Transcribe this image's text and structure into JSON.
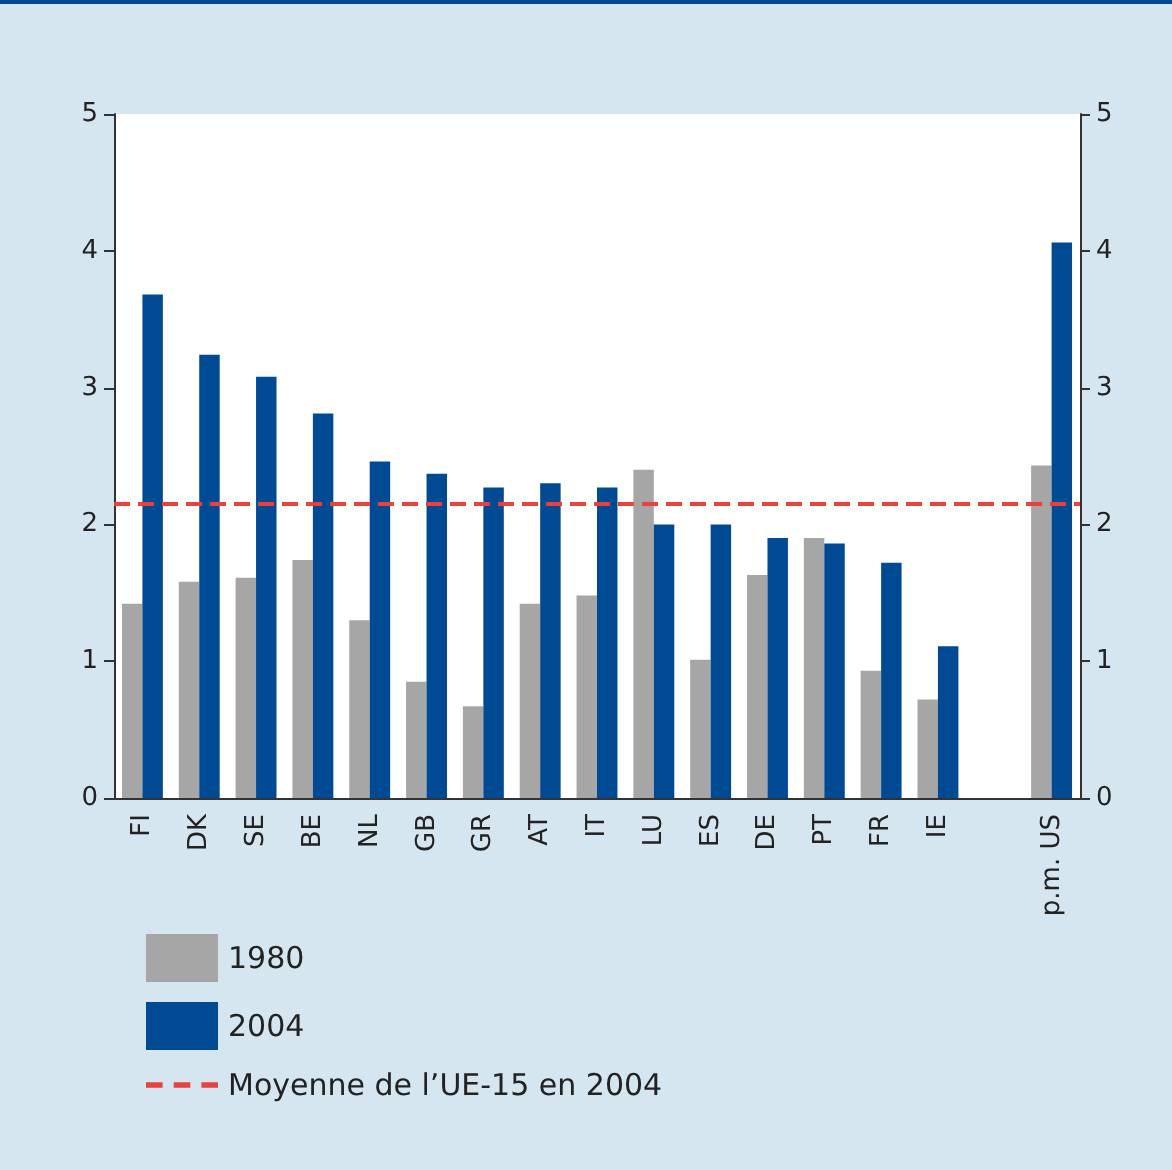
{
  "chart_data": {
    "type": "bar",
    "categories": [
      "FI",
      "DK",
      "SE",
      "BE",
      "NL",
      "GB",
      "GR",
      "AT",
      "IT",
      "LU",
      "ES",
      "DE",
      "PT",
      "FR",
      "IE",
      null,
      "p.m. US"
    ],
    "series": [
      {
        "name": "1980",
        "color": "#a6a6a6",
        "values": [
          1.42,
          1.58,
          1.61,
          1.74,
          1.3,
          0.85,
          0.67,
          1.42,
          1.48,
          2.4,
          1.01,
          1.63,
          1.9,
          0.93,
          0.72,
          null,
          2.43
        ]
      },
      {
        "name": "2004",
        "color": "#004a93",
        "values": [
          3.68,
          3.24,
          3.08,
          2.81,
          2.46,
          2.37,
          2.27,
          2.3,
          2.27,
          2.0,
          2.0,
          1.9,
          1.86,
          1.72,
          1.11,
          null,
          4.06
        ]
      }
    ],
    "ylim": [
      0,
      5
    ],
    "yticks": [
      0,
      1,
      2,
      3,
      4,
      5
    ],
    "y2lim": [
      0,
      5
    ],
    "y2ticks": [
      0,
      1,
      2,
      3,
      4,
      5
    ],
    "ref_lines": [
      {
        "axis": "y",
        "value": 2.15,
        "label": "Moyenne de l’UE-15 en 2004",
        "color": "#e8423c",
        "line_style": "dashed"
      }
    ],
    "grid": false,
    "legend": "bottom left"
  }
}
